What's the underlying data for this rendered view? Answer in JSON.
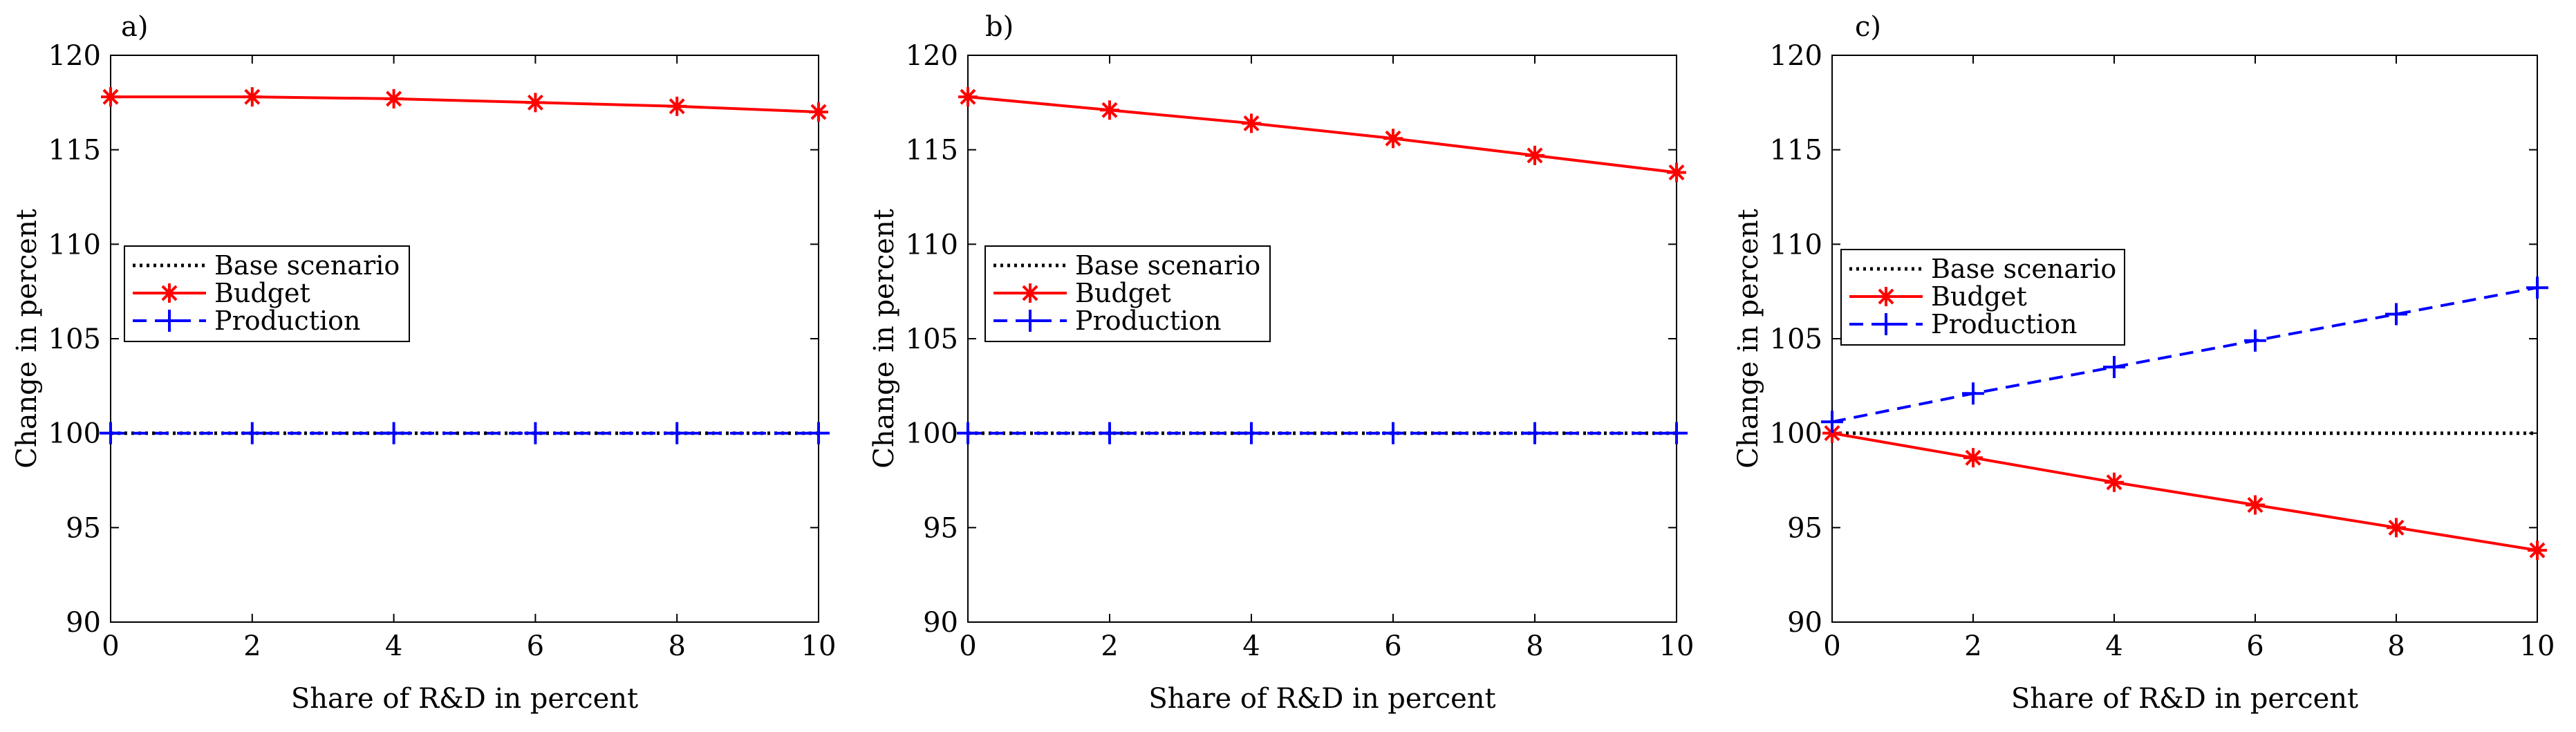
{
  "chart_data": [
    {
      "type": "line",
      "panel_label": "a)",
      "xlabel": "Share of R&D in percent",
      "ylabel": "Change in percent",
      "x": [
        0,
        2,
        4,
        6,
        8,
        10
      ],
      "xlim": [
        0,
        10
      ],
      "ylim": [
        90,
        120
      ],
      "xticks": [
        0,
        2,
        4,
        6,
        8,
        10
      ],
      "yticks": [
        90,
        95,
        100,
        105,
        110,
        115,
        120
      ],
      "legend_position": "center-left",
      "series": [
        {
          "name": "Base scenario",
          "style": "dotted",
          "color": "#000000",
          "marker": "none",
          "values": [
            100,
            100,
            100,
            100,
            100,
            100
          ]
        },
        {
          "name": "Budget",
          "style": "solid",
          "color": "#ff0000",
          "marker": "asterisk",
          "values": [
            117.8,
            117.8,
            117.7,
            117.5,
            117.3,
            117.0
          ]
        },
        {
          "name": "Production",
          "style": "dashed",
          "color": "#0000ff",
          "marker": "plus",
          "values": [
            100,
            100,
            100,
            100,
            100,
            100
          ]
        }
      ]
    },
    {
      "type": "line",
      "panel_label": "b)",
      "xlabel": "Share of R&D in percent",
      "ylabel": "Change in percent",
      "x": [
        0,
        2,
        4,
        6,
        8,
        10
      ],
      "xlim": [
        0,
        10
      ],
      "ylim": [
        90,
        120
      ],
      "xticks": [
        0,
        2,
        4,
        6,
        8,
        10
      ],
      "yticks": [
        90,
        95,
        100,
        105,
        110,
        115,
        120
      ],
      "legend_position": "center-left",
      "series": [
        {
          "name": "Base scenario",
          "style": "dotted",
          "color": "#000000",
          "marker": "none",
          "values": [
            100,
            100,
            100,
            100,
            100,
            100
          ]
        },
        {
          "name": "Budget",
          "style": "solid",
          "color": "#ff0000",
          "marker": "asterisk",
          "values": [
            117.8,
            117.1,
            116.4,
            115.6,
            114.7,
            113.8
          ]
        },
        {
          "name": "Production",
          "style": "dashed",
          "color": "#0000ff",
          "marker": "plus",
          "values": [
            100,
            100,
            100,
            100,
            100,
            100
          ]
        }
      ]
    },
    {
      "type": "line",
      "panel_label": "c)",
      "xlabel": "Share of R&D in percent",
      "ylabel": "Change in percent",
      "x": [
        0,
        2,
        4,
        6,
        8,
        10
      ],
      "xlim": [
        0,
        10
      ],
      "ylim": [
        90,
        120
      ],
      "xticks": [
        0,
        2,
        4,
        6,
        8,
        10
      ],
      "yticks": [
        90,
        95,
        100,
        105,
        110,
        115,
        120
      ],
      "legend_position": "center-left",
      "series": [
        {
          "name": "Base scenario",
          "style": "dotted",
          "color": "#000000",
          "marker": "none",
          "values": [
            100,
            100,
            100,
            100,
            100,
            100
          ]
        },
        {
          "name": "Budget",
          "style": "solid",
          "color": "#ff0000",
          "marker": "asterisk",
          "values": [
            100.0,
            98.7,
            97.4,
            96.2,
            95.0,
            93.8
          ]
        },
        {
          "name": "Production",
          "style": "dashed",
          "color": "#0000ff",
          "marker": "plus",
          "values": [
            100.6,
            102.1,
            103.5,
            104.9,
            106.3,
            107.7
          ]
        }
      ]
    }
  ]
}
